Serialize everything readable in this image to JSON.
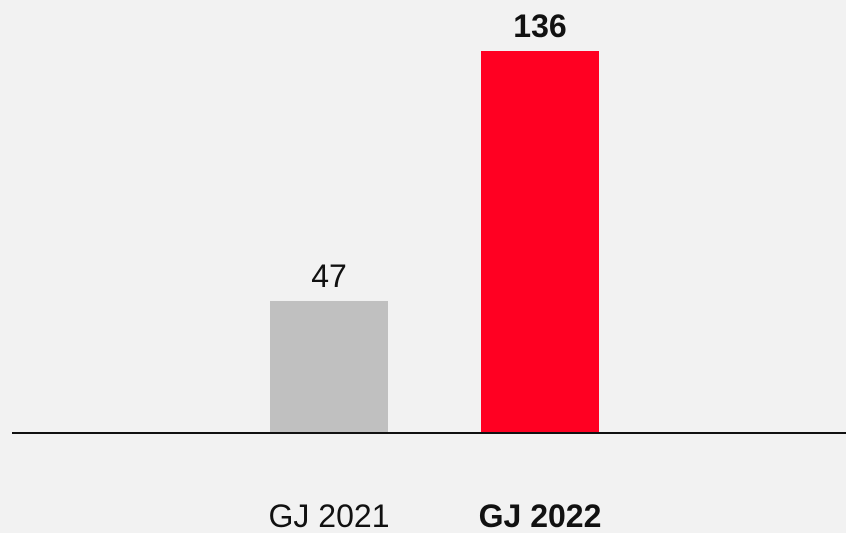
{
  "chart_data": {
    "type": "bar",
    "categories": [
      "GJ 2021",
      "GJ 2022"
    ],
    "values": [
      47,
      136
    ],
    "colors": [
      "#c0c0c0",
      "#ff0022"
    ]
  }
}
